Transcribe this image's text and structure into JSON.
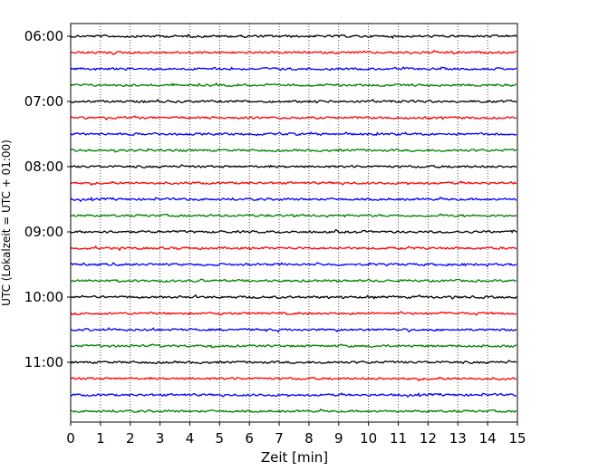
{
  "chart_data": {
    "type": "line",
    "subtype": "seismic-helicorder",
    "xlabel": "Zeit  [min]",
    "ylabel": "UTC (Lokalzeit = UTC + 01:00)",
    "xlim": [
      0,
      15
    ],
    "x_ticks": [
      "0",
      "1",
      "2",
      "3",
      "4",
      "5",
      "6",
      "7",
      "8",
      "9",
      "10",
      "11",
      "12",
      "13",
      "14",
      "15"
    ],
    "y_ticks": [
      "06:00",
      "07:00",
      "08:00",
      "09:00",
      "10:00",
      "11:00"
    ],
    "trace_minutes": 15,
    "trace_start": "06:00",
    "trace_count": 24,
    "trace_colors": [
      "#000000",
      "#ff0000",
      "#0000ff",
      "#008000"
    ],
    "vertical_grid": "dotted",
    "grid": true
  }
}
